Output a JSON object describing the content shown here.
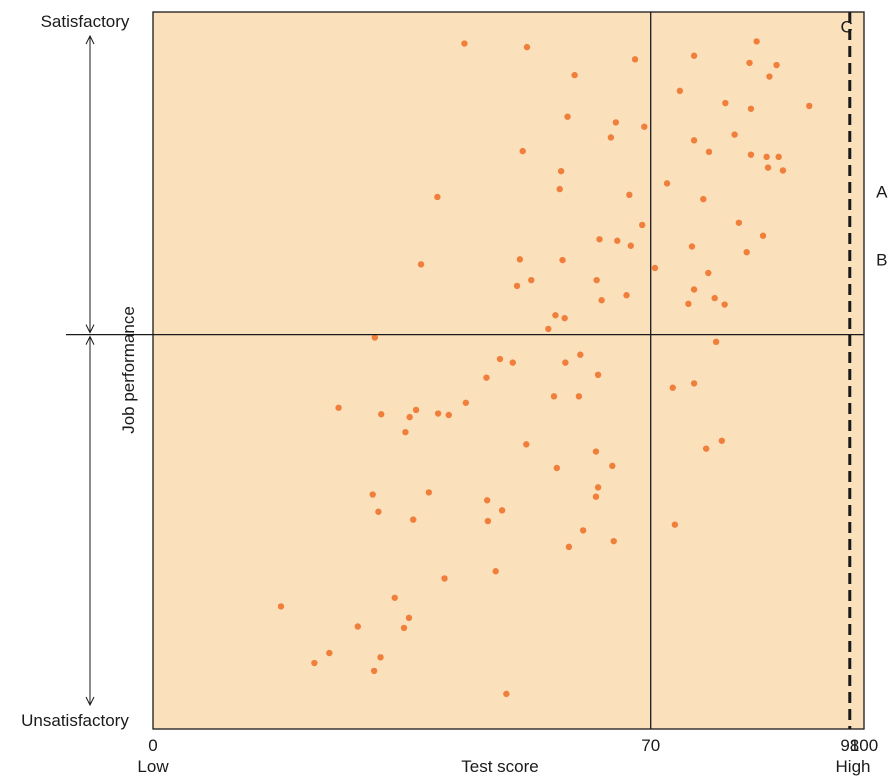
{
  "chart_data": {
    "type": "scatter",
    "title": "",
    "xlabel": "Test score",
    "ylabel": "Job performance",
    "xlim": [
      0,
      100
    ],
    "ylim": [
      0,
      100
    ],
    "xticks": [
      {
        "value": 0,
        "label": "0"
      },
      {
        "value": 70,
        "label": "70"
      },
      {
        "value": 98,
        "label": "98"
      },
      {
        "value": 100,
        "label": "100"
      }
    ],
    "x_end_labels": {
      "low": "Low",
      "high": "High"
    },
    "y_end_labels": {
      "top": "Satisfactory",
      "bottom": "Unsatisfactory"
    },
    "reference_lines": {
      "vertical": 70,
      "horizontal": 55,
      "cutoff_dashed": 98
    },
    "annotations": [
      {
        "text": "C",
        "x": 96,
        "y": 98
      },
      {
        "text": "A",
        "x": 101,
        "y": 75
      },
      {
        "text": "B",
        "x": 101,
        "y": 65.5
      }
    ],
    "colors": {
      "background": "#FBE0BC",
      "points": "#F07F3C",
      "lines": "#1a1a1a"
    },
    "grid": false,
    "points": [
      [
        43.8,
        95.6
      ],
      [
        52.6,
        95.1
      ],
      [
        59.3,
        91.2
      ],
      [
        67.8,
        93.4
      ],
      [
        76.1,
        93.9
      ],
      [
        84.9,
        95.9
      ],
      [
        87.7,
        92.6
      ],
      [
        83.9,
        92.9
      ],
      [
        86.7,
        91.0
      ],
      [
        74.1,
        89.0
      ],
      [
        80.5,
        87.3
      ],
      [
        58.3,
        85.4
      ],
      [
        65.1,
        84.6
      ],
      [
        69.1,
        84.0
      ],
      [
        84.1,
        86.5
      ],
      [
        92.3,
        86.9
      ],
      [
        76.1,
        82.1
      ],
      [
        81.8,
        82.9
      ],
      [
        78.2,
        80.5
      ],
      [
        84.1,
        80.1
      ],
      [
        86.3,
        79.8
      ],
      [
        88.0,
        79.8
      ],
      [
        86.5,
        78.3
      ],
      [
        88.6,
        77.9
      ],
      [
        64.4,
        82.5
      ],
      [
        72.3,
        76.1
      ],
      [
        67.0,
        74.5
      ],
      [
        77.4,
        73.9
      ],
      [
        57.2,
        75.3
      ],
      [
        57.4,
        77.8
      ],
      [
        40.0,
        74.2
      ],
      [
        52.0,
        80.6
      ],
      [
        82.4,
        70.6
      ],
      [
        85.8,
        68.8
      ],
      [
        83.5,
        66.5
      ],
      [
        68.8,
        70.3
      ],
      [
        62.8,
        68.3
      ],
      [
        67.2,
        67.4
      ],
      [
        65.3,
        68.1
      ],
      [
        70.6,
        64.3
      ],
      [
        75.8,
        67.3
      ],
      [
        57.6,
        65.4
      ],
      [
        51.6,
        65.5
      ],
      [
        37.7,
        64.8
      ],
      [
        62.4,
        62.6
      ],
      [
        53.2,
        62.6
      ],
      [
        51.2,
        61.8
      ],
      [
        76.1,
        61.3
      ],
      [
        78.1,
        63.6
      ],
      [
        66.6,
        60.5
      ],
      [
        79.0,
        60.1
      ],
      [
        80.4,
        59.2
      ],
      [
        75.3,
        59.3
      ],
      [
        56.6,
        57.7
      ],
      [
        63.1,
        59.8
      ],
      [
        57.9,
        57.3
      ],
      [
        55.6,
        55.8
      ],
      [
        31.2,
        54.6
      ],
      [
        79.2,
        54.0
      ],
      [
        50.6,
        51.1
      ],
      [
        48.8,
        51.6
      ],
      [
        60.1,
        52.2
      ],
      [
        58.0,
        51.1
      ],
      [
        46.9,
        49.0
      ],
      [
        62.6,
        49.4
      ],
      [
        73.1,
        47.6
      ],
      [
        76.1,
        48.2
      ],
      [
        56.4,
        46.4
      ],
      [
        59.9,
        46.4
      ],
      [
        37.0,
        44.5
      ],
      [
        40.1,
        44.0
      ],
      [
        36.1,
        43.5
      ],
      [
        32.1,
        43.9
      ],
      [
        26.1,
        44.8
      ],
      [
        44.0,
        45.5
      ],
      [
        41.6,
        43.8
      ],
      [
        35.5,
        41.4
      ],
      [
        80.0,
        40.2
      ],
      [
        52.5,
        39.7
      ],
      [
        77.8,
        39.1
      ],
      [
        62.3,
        38.7
      ],
      [
        64.6,
        36.7
      ],
      [
        56.8,
        36.4
      ],
      [
        62.6,
        33.7
      ],
      [
        62.3,
        32.4
      ],
      [
        30.9,
        32.7
      ],
      [
        38.8,
        33.0
      ],
      [
        47.0,
        31.9
      ],
      [
        31.7,
        30.3
      ],
      [
        49.1,
        30.5
      ],
      [
        36.6,
        29.2
      ],
      [
        47.1,
        29.0
      ],
      [
        73.4,
        28.5
      ],
      [
        60.5,
        27.7
      ],
      [
        64.8,
        26.2
      ],
      [
        58.5,
        25.4
      ],
      [
        48.2,
        22.0
      ],
      [
        41.0,
        21.0
      ],
      [
        34.0,
        18.3
      ],
      [
        36.0,
        15.5
      ],
      [
        35.3,
        14.1
      ],
      [
        28.8,
        14.3
      ],
      [
        18.0,
        17.1
      ],
      [
        32.0,
        10.0
      ],
      [
        31.1,
        8.1
      ],
      [
        22.7,
        9.2
      ],
      [
        24.8,
        10.6
      ],
      [
        49.7,
        4.9
      ]
    ]
  }
}
